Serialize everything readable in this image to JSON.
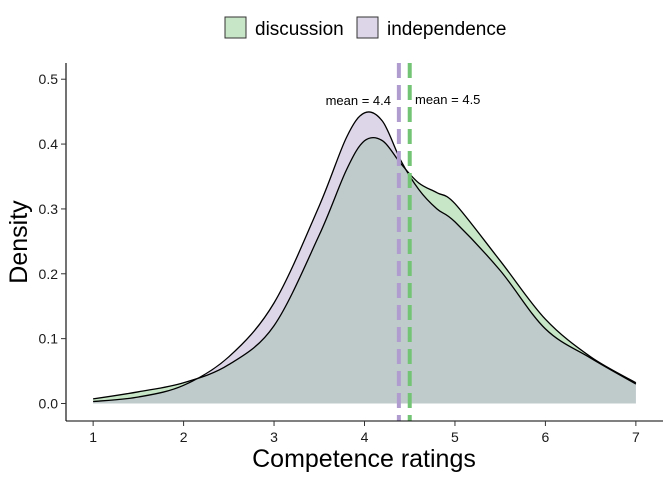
{
  "chart_data": {
    "type": "area",
    "xlabel": "Competence ratings",
    "ylabel": "Density",
    "xlim": [
      0.7,
      7.3
    ],
    "ylim": [
      -0.027,
      0.525
    ],
    "xticks": [
      1,
      2,
      3,
      4,
      5,
      6,
      7
    ],
    "yticks": [
      0.0,
      0.1,
      0.2,
      0.3,
      0.4,
      0.5
    ],
    "ytick_labels": [
      "0.0",
      "0.1",
      "0.2",
      "0.3",
      "0.4",
      "0.5"
    ],
    "grid": false,
    "legend_position": "top",
    "series": [
      {
        "name": "discussion",
        "color": "#c7e6c7",
        "mean_color": "#74c476",
        "mean": 4.5,
        "mean_label": "mean = 4.5",
        "x": [
          1.0,
          1.5,
          2.0,
          2.5,
          3.0,
          3.5,
          3.8,
          4.0,
          4.2,
          4.4,
          4.6,
          4.8,
          5.0,
          5.5,
          6.0,
          6.5,
          7.0
        ],
        "y": [
          0.007,
          0.018,
          0.032,
          0.06,
          0.12,
          0.26,
          0.36,
          0.405,
          0.405,
          0.37,
          0.34,
          0.325,
          0.308,
          0.22,
          0.13,
          0.072,
          0.032
        ]
      },
      {
        "name": "independence",
        "color": "#ddd6e8",
        "mean_color": "#b09ccf",
        "mean": 4.38,
        "mean_label": "mean = 4.4",
        "x": [
          1.0,
          1.5,
          2.0,
          2.5,
          3.0,
          3.5,
          3.8,
          4.0,
          4.2,
          4.4,
          4.6,
          4.8,
          5.0,
          5.5,
          6.0,
          6.5,
          7.0
        ],
        "y": [
          0.003,
          0.01,
          0.028,
          0.072,
          0.155,
          0.305,
          0.41,
          0.448,
          0.435,
          0.375,
          0.33,
          0.3,
          0.28,
          0.205,
          0.115,
          0.07,
          0.03
        ]
      }
    ],
    "overlap_color": "#bfcacb"
  }
}
